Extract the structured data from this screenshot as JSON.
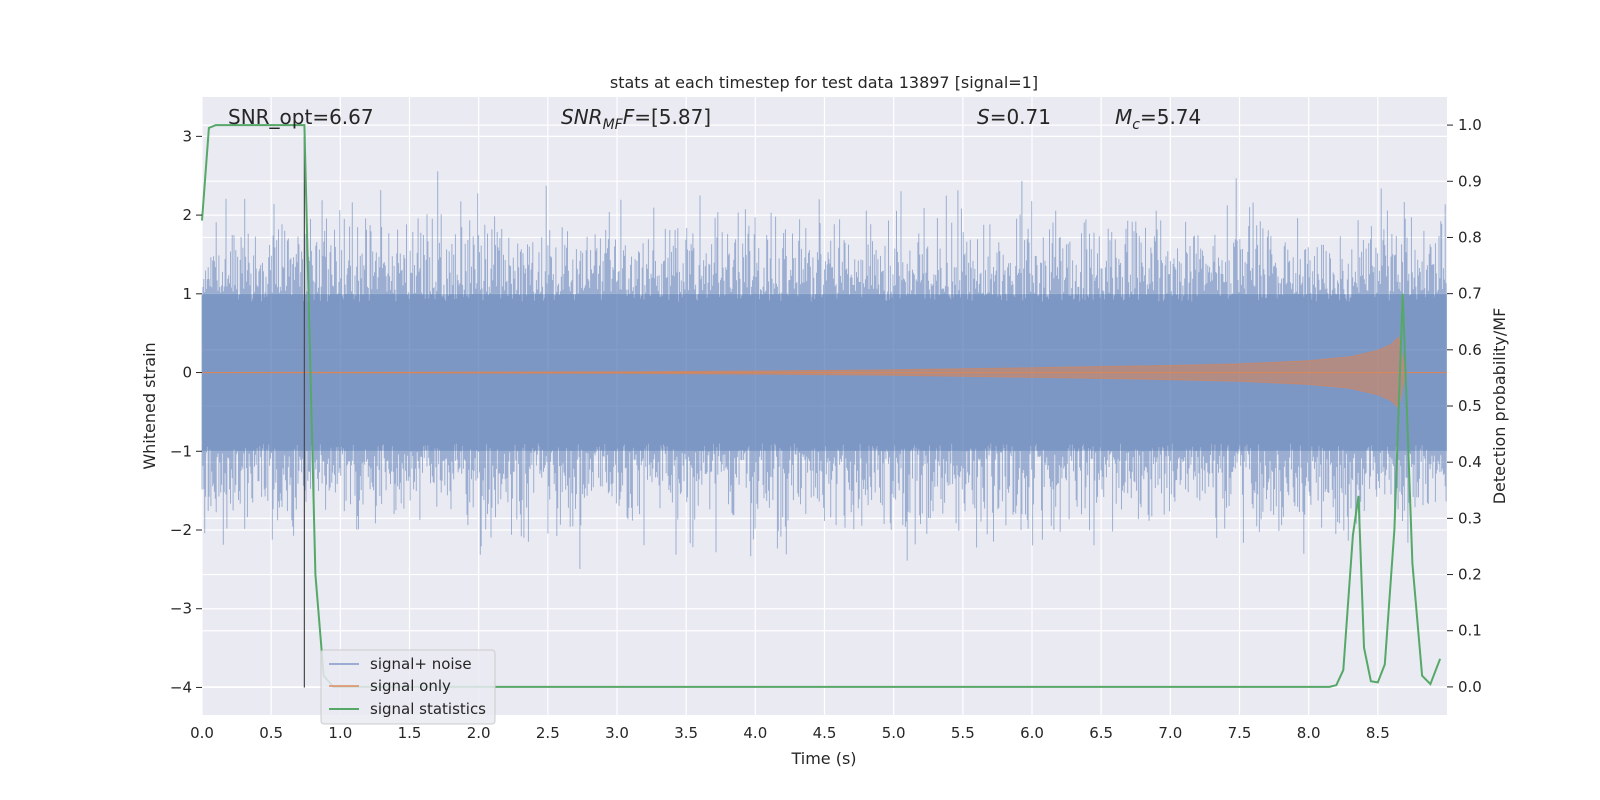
{
  "chart_data": {
    "type": "line",
    "title": "stats at each timestep for test data 13897 [signal=1]",
    "xlabel": "Time (s)",
    "ylabel_left": "Whitened strain",
    "ylabel_right": "Detection probability/MF",
    "xlim": [
      0.0,
      9.0
    ],
    "ylim_left": [
      -4.35,
      3.5
    ],
    "ylim_right": [
      -0.05,
      1.05
    ],
    "xticks": [
      "0.0",
      "0.5",
      "1.0",
      "1.5",
      "2.0",
      "2.5",
      "3.0",
      "3.5",
      "4.0",
      "4.5",
      "5.0",
      "5.5",
      "6.0",
      "6.5",
      "7.0",
      "7.5",
      "8.0",
      "8.5"
    ],
    "yticks_left": [
      "3",
      "2",
      "1",
      "0",
      "−1",
      "−2",
      "−3",
      "−4"
    ],
    "yticks_right": [
      "1.0",
      "0.9",
      "0.8",
      "0.7",
      "0.6",
      "0.5",
      "0.4",
      "0.3",
      "0.2",
      "0.1",
      "0.0"
    ],
    "grid": true,
    "legend_position": "lower-left",
    "annotations": {
      "snr_opt": "SNR_opt=6.67",
      "snr_mf_base": "SNR",
      "snr_mf_sub": "MF",
      "snr_mf_value": "=[5.87]",
      "s_label": "S",
      "s_value": "=0.71",
      "mc_base": "M",
      "mc_sub": "c",
      "mc_value": "=5.74"
    },
    "marker_line": {
      "x": 0.74,
      "y_from": -4.0,
      "y_to": 3.0
    },
    "series": [
      {
        "name": "signal+ noise",
        "color": "#4c72b0",
        "axis": "left",
        "description_envelope": {
          "typical_amplitude": 1.0,
          "max": 3.15,
          "min": -3.6
        }
      },
      {
        "name": "signal only",
        "color": "#dd8452",
        "axis": "left",
        "envelope": {
          "x": [
            0.0,
            3.0,
            4.0,
            5.0,
            6.0,
            7.0,
            7.5,
            8.0,
            8.3,
            8.5,
            8.6,
            8.65,
            8.7,
            9.0
          ],
          "amp": [
            0.0,
            0.01,
            0.02,
            0.035,
            0.06,
            0.09,
            0.11,
            0.15,
            0.2,
            0.28,
            0.36,
            0.45,
            0.0,
            0.0
          ]
        }
      },
      {
        "name": "signal statistics",
        "color": "#55a868",
        "axis": "right",
        "x": [
          0.0,
          0.05,
          0.1,
          0.15,
          0.2,
          0.3,
          0.4,
          0.5,
          0.6,
          0.7,
          0.74,
          0.78,
          0.82,
          0.88,
          0.95,
          1.0,
          2.0,
          3.0,
          4.0,
          5.0,
          6.0,
          7.0,
          8.0,
          8.15,
          8.2,
          8.25,
          8.32,
          8.36,
          8.4,
          8.45,
          8.5,
          8.55,
          8.62,
          8.68,
          8.75,
          8.82,
          8.88,
          8.95
        ],
        "values": [
          0.83,
          0.995,
          1.0,
          1.0,
          1.0,
          1.0,
          1.0,
          1.0,
          1.0,
          1.0,
          1.0,
          0.6,
          0.2,
          0.02,
          0.0,
          0.0,
          0.0,
          0.0,
          0.0,
          0.0,
          0.0,
          0.0,
          0.0,
          0.0,
          0.003,
          0.03,
          0.27,
          0.34,
          0.07,
          0.01,
          0.008,
          0.04,
          0.28,
          0.7,
          0.22,
          0.02,
          0.005,
          0.05
        ]
      }
    ]
  }
}
